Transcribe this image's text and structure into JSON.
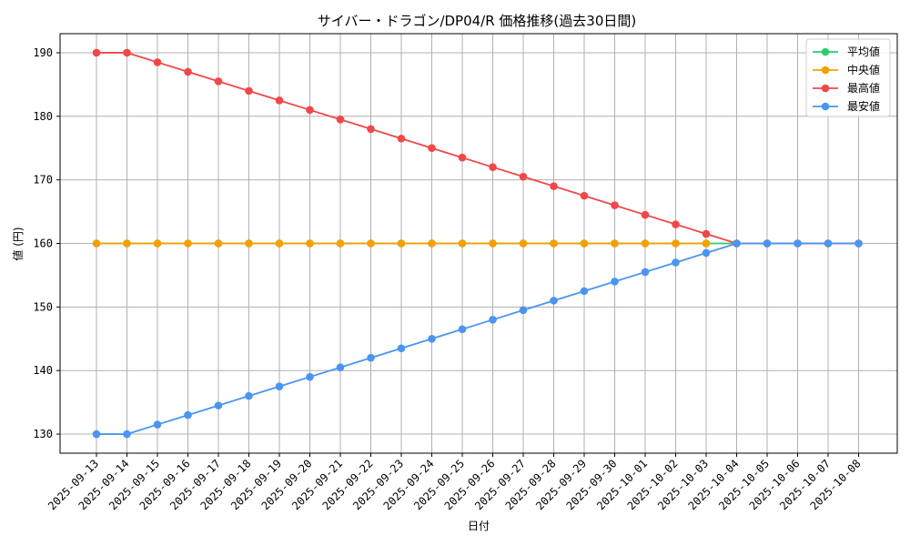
{
  "chart_data": {
    "type": "line",
    "title": "サイバー・ドラゴン/DP04/R 価格推移(過去30日間)",
    "xlabel": "日付",
    "ylabel": "値 (円)",
    "ylim": [
      127,
      193
    ],
    "yticks": [
      130,
      140,
      150,
      160,
      170,
      180,
      190
    ],
    "grid": true,
    "legend_position": "top-right",
    "categories": [
      "2025-09-13",
      "2025-09-14",
      "2025-09-15",
      "2025-09-16",
      "2025-09-17",
      "2025-09-18",
      "2025-09-19",
      "2025-09-20",
      "2025-09-21",
      "2025-09-22",
      "2025-09-23",
      "2025-09-24",
      "2025-09-25",
      "2025-09-26",
      "2025-09-27",
      "2025-09-28",
      "2025-09-29",
      "2025-09-30",
      "2025-10-01",
      "2025-10-02",
      "2025-10-03",
      "2025-10-04",
      "2025-10-05",
      "2025-10-06",
      "2025-10-07",
      "2025-10-08"
    ],
    "series": [
      {
        "name": "平均値",
        "color": "#2ecc71",
        "values": [
          160,
          160,
          160,
          160,
          160,
          160,
          160,
          160,
          160,
          160,
          160,
          160,
          160,
          160,
          160,
          160,
          160,
          160,
          160,
          160,
          160,
          160,
          160,
          160,
          160,
          160
        ]
      },
      {
        "name": "中央値",
        "color": "#f5a000",
        "values": [
          160,
          160,
          160,
          160,
          160,
          160,
          160,
          160,
          160,
          160,
          160,
          160,
          160,
          160,
          160,
          160,
          160,
          160,
          160,
          160,
          160,
          null,
          null,
          null,
          null,
          null
        ]
      },
      {
        "name": "最高値",
        "color": "#f04848",
        "values": [
          190,
          190,
          188.5,
          187,
          185.5,
          184,
          182.5,
          181,
          179.5,
          178,
          176.5,
          175,
          173.5,
          172,
          170.5,
          169,
          167.5,
          166,
          164.5,
          163,
          161.5,
          160,
          160,
          160,
          160,
          160
        ]
      },
      {
        "name": "最安値",
        "color": "#4a95f0",
        "values": [
          130,
          130,
          131.5,
          133,
          134.5,
          136,
          137.5,
          139,
          140.5,
          142,
          143.5,
          145,
          146.5,
          148,
          149.5,
          151,
          152.5,
          154,
          155.5,
          157,
          158.5,
          160,
          160,
          160,
          160,
          160
        ]
      }
    ]
  }
}
